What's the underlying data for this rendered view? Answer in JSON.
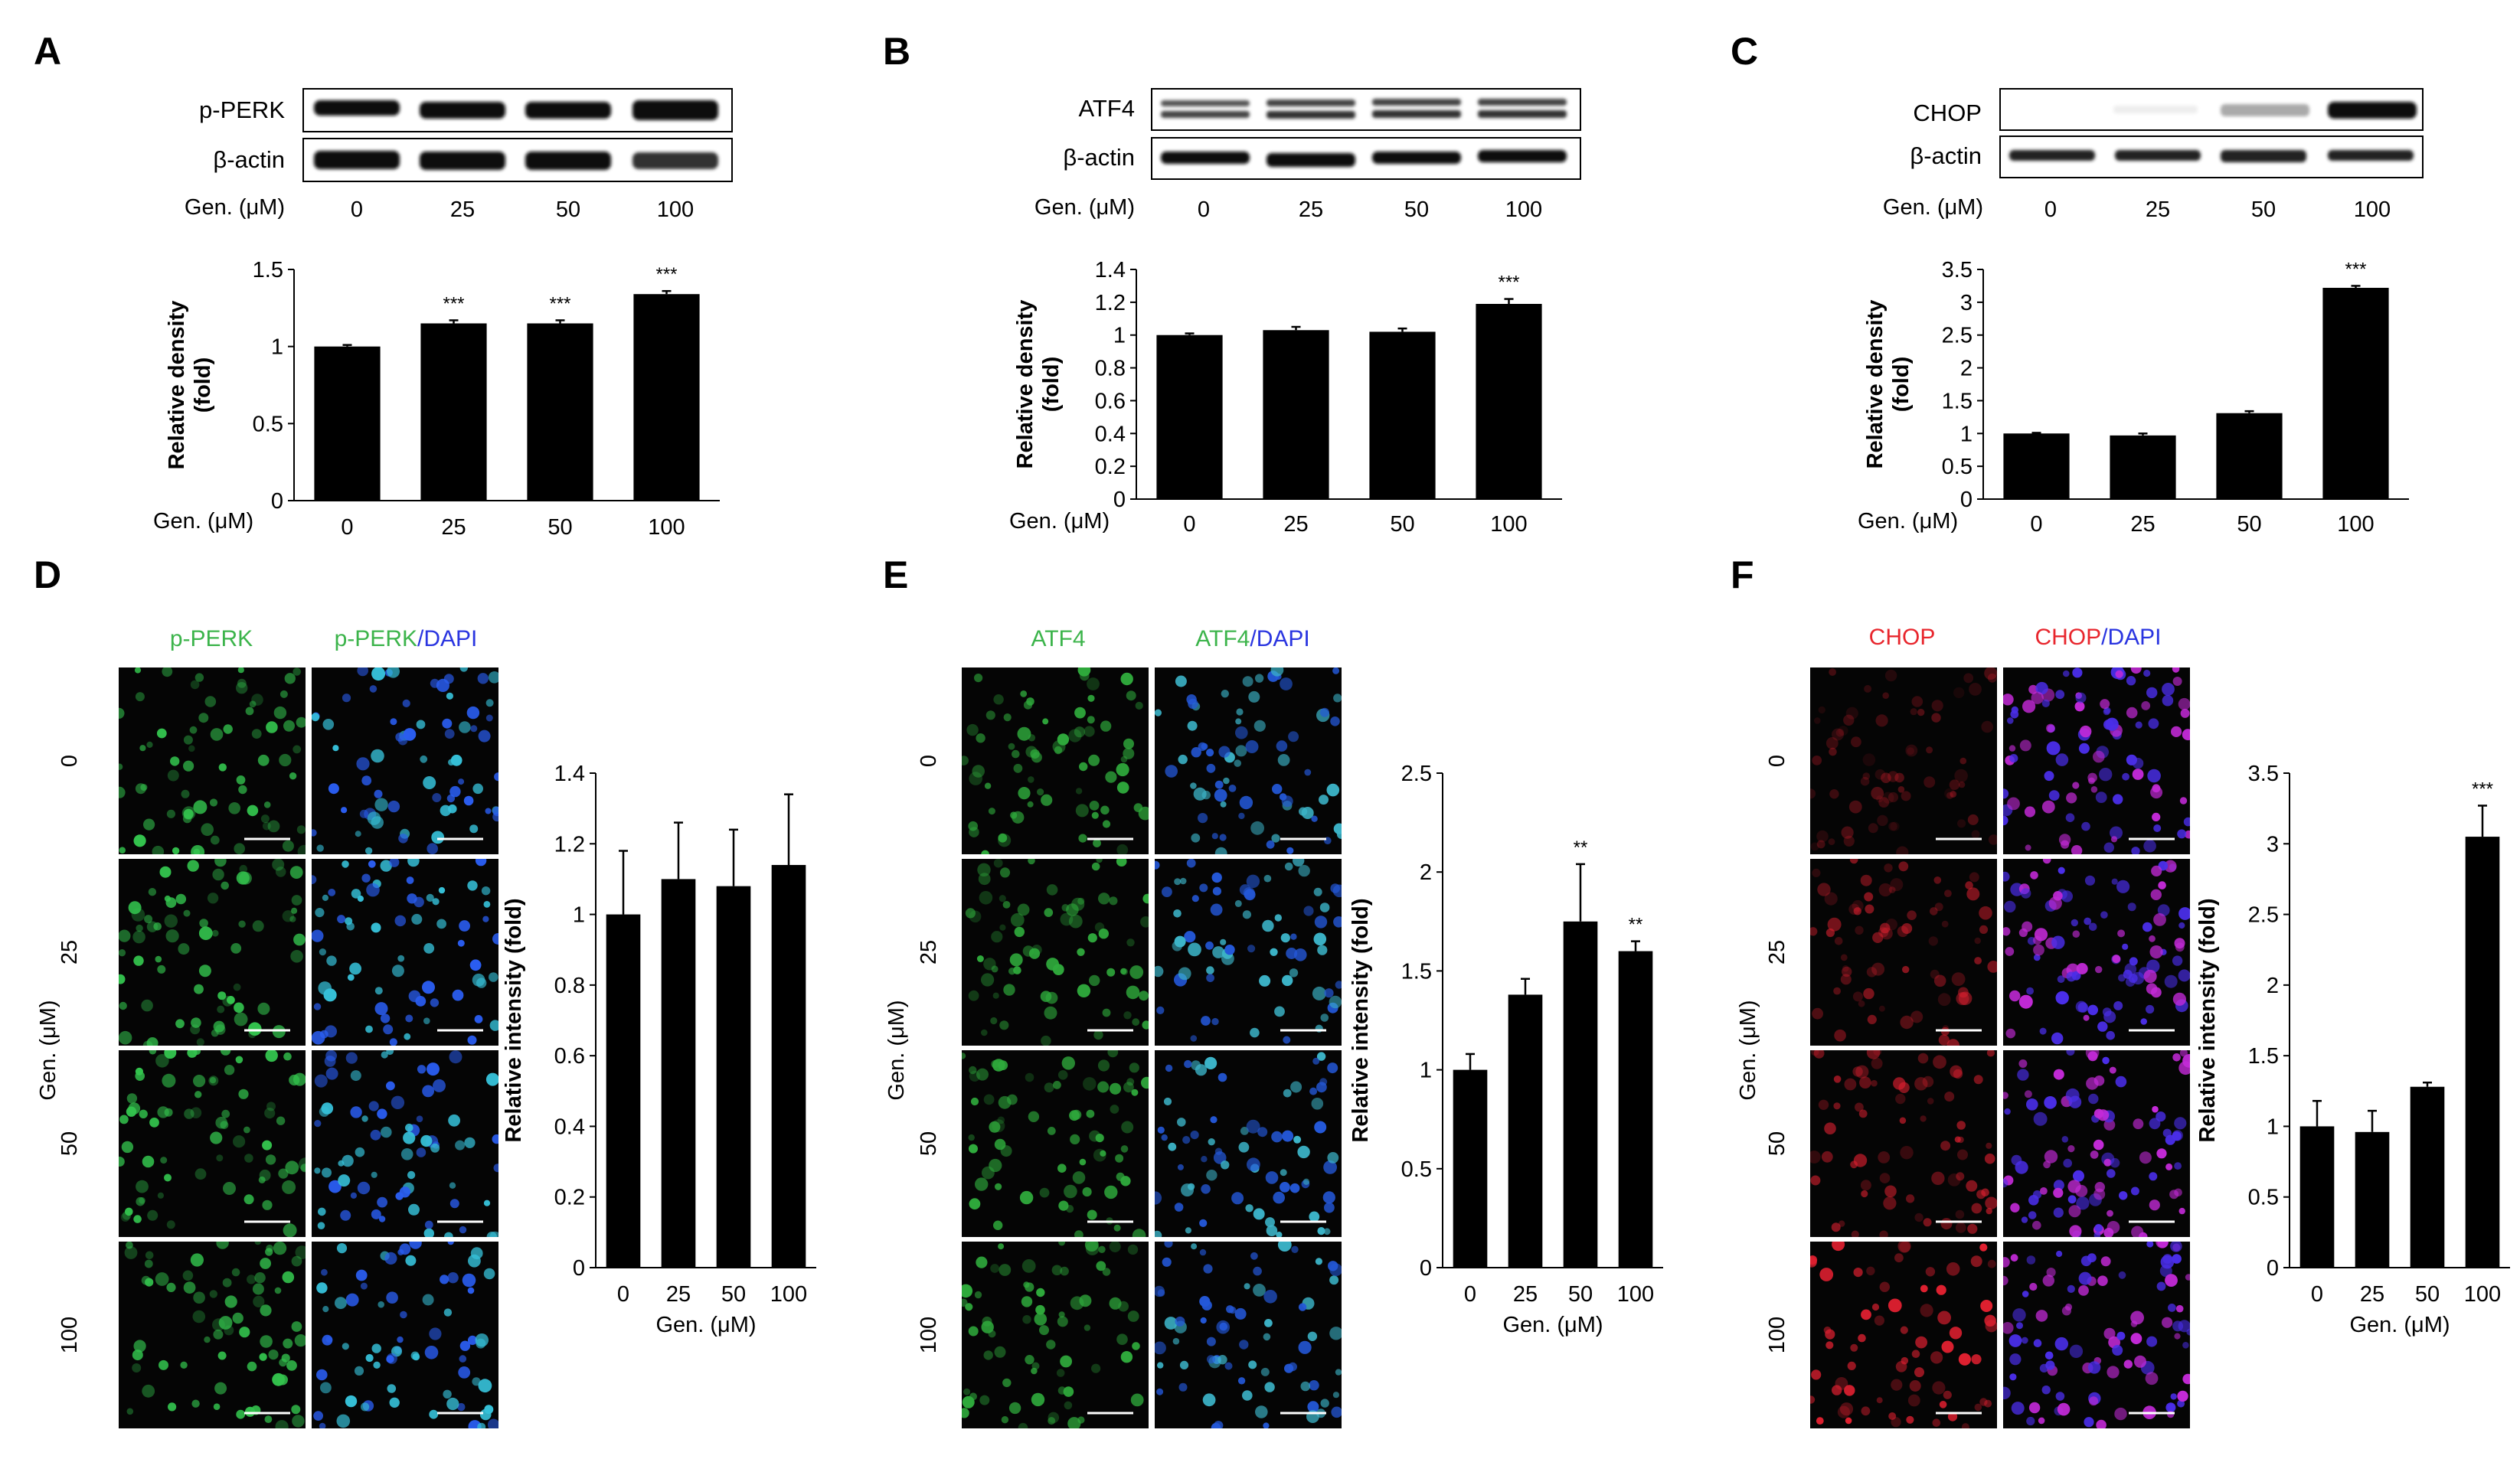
{
  "colors": {
    "bar": "#000000",
    "green_label": "#3cb44b",
    "red_label": "#e8262d",
    "blue_label": "#2a35e0",
    "micro_bg": "#050505"
  },
  "doses": [
    "0",
    "25",
    "50",
    "100"
  ],
  "gen_label": "Gen. (μM)",
  "dose_row_title": "Gen. (μM)",
  "blot_panels": [
    {
      "letter": "A",
      "bands": [
        "p-PERK",
        "β-actin"
      ]
    },
    {
      "letter": "B",
      "bands": [
        "ATF4",
        "β-actin"
      ]
    },
    {
      "letter": "C",
      "bands": [
        "CHOP",
        "β-actin"
      ]
    }
  ],
  "micro_panels": [
    {
      "letter": "D",
      "channels": [
        {
          "text": "p-PERK",
          "color": "green"
        },
        {
          "text": "p-PERK",
          "color": "green",
          "suffix": "/DAPI"
        }
      ]
    },
    {
      "letter": "E",
      "channels": [
        {
          "text": "ATF4",
          "color": "green"
        },
        {
          "text": "ATF4",
          "color": "green",
          "suffix": "/DAPI"
        }
      ]
    },
    {
      "letter": "F",
      "channels": [
        {
          "text": "CHOP",
          "color": "red"
        },
        {
          "text": "CHOP",
          "color": "red",
          "suffix": "/DAPI"
        }
      ]
    }
  ],
  "chart_data": [
    {
      "panel": "A",
      "type": "bar",
      "categories": [
        "0",
        "25",
        "50",
        "100"
      ],
      "values": [
        1.0,
        1.15,
        1.15,
        1.34
      ],
      "errors": [
        0.01,
        0.02,
        0.02,
        0.02
      ],
      "significance": [
        "",
        "***",
        "***",
        "***"
      ],
      "ylabel": "Relative density\n(fold)",
      "xlabel": "Gen. (μM)",
      "ylim": [
        0,
        1.5
      ],
      "yticks": [
        "0",
        "0.5",
        "1",
        "1.5"
      ],
      "ytick_values": [
        0,
        0.5,
        1,
        1.5
      ]
    },
    {
      "panel": "B",
      "type": "bar",
      "categories": [
        "0",
        "25",
        "50",
        "100"
      ],
      "values": [
        1.0,
        1.03,
        1.02,
        1.19
      ],
      "errors": [
        0.01,
        0.02,
        0.02,
        0.03
      ],
      "significance": [
        "",
        "",
        "",
        "***"
      ],
      "ylabel": "Relative density\n(fold)",
      "xlabel": "Gen. (μM)",
      "ylim": [
        0,
        1.4
      ],
      "yticks": [
        "0",
        "0.2",
        "0.4",
        "0.6",
        "0.8",
        "1",
        "1.2",
        "1.4"
      ],
      "ytick_values": [
        0,
        0.2,
        0.4,
        0.6,
        0.8,
        1,
        1.2,
        1.4
      ]
    },
    {
      "panel": "C",
      "type": "bar",
      "categories": [
        "0",
        "25",
        "50",
        "100"
      ],
      "values": [
        1.0,
        0.97,
        1.31,
        3.22
      ],
      "errors": [
        0.01,
        0.03,
        0.03,
        0.03
      ],
      "significance": [
        "",
        "",
        "",
        "***"
      ],
      "ylabel": "Relative density\n(fold)",
      "xlabel": "Gen. (μM)",
      "ylim": [
        0,
        3.5
      ],
      "yticks": [
        "0",
        "0.5",
        "1",
        "1.5",
        "2",
        "2.5",
        "3",
        "3.5"
      ],
      "ytick_values": [
        0,
        0.5,
        1,
        1.5,
        2,
        2.5,
        3,
        3.5
      ]
    },
    {
      "panel": "D",
      "type": "bar",
      "categories": [
        "0",
        "25",
        "50",
        "100"
      ],
      "values": [
        1.0,
        1.1,
        1.08,
        1.14
      ],
      "errors": [
        0.18,
        0.16,
        0.16,
        0.2
      ],
      "significance": [
        "",
        "",
        "",
        ""
      ],
      "ylabel": "Relative intensity (fold)",
      "xlabel": "Gen. (μM)",
      "ylim": [
        0,
        1.4
      ],
      "yticks": [
        "0",
        "0.2",
        "0.4",
        "0.6",
        "0.8",
        "1",
        "1.2",
        "1.4"
      ],
      "ytick_values": [
        0,
        0.2,
        0.4,
        0.6,
        0.8,
        1,
        1.2,
        1.4
      ]
    },
    {
      "panel": "E",
      "type": "bar",
      "categories": [
        "0",
        "25",
        "50",
        "100"
      ],
      "values": [
        1.0,
        1.38,
        1.75,
        1.6
      ],
      "errors": [
        0.08,
        0.08,
        0.29,
        0.05
      ],
      "significance": [
        "",
        "",
        "**",
        "**"
      ],
      "ylabel": "Relative intensity (fold)",
      "xlabel": "Gen. (μM)",
      "ylim": [
        0,
        2.5
      ],
      "yticks": [
        "0",
        "0.5",
        "1",
        "1.5",
        "2",
        "2.5"
      ],
      "ytick_values": [
        0,
        0.5,
        1,
        1.5,
        2,
        2.5
      ]
    },
    {
      "panel": "F",
      "type": "bar",
      "categories": [
        "0",
        "25",
        "50",
        "100"
      ],
      "values": [
        1.0,
        0.96,
        1.28,
        3.05
      ],
      "errors": [
        0.18,
        0.15,
        0.03,
        0.22
      ],
      "significance": [
        "",
        "",
        "",
        "***"
      ],
      "ylabel": "Relative intensity (fold)",
      "xlabel": "Gen. (μM)",
      "ylim": [
        0,
        3.5
      ],
      "yticks": [
        "0",
        "0.5",
        "1",
        "1.5",
        "2",
        "2.5",
        "3",
        "3.5"
      ],
      "ytick_values": [
        0,
        0.5,
        1,
        1.5,
        2,
        2.5,
        3,
        3.5
      ]
    }
  ]
}
